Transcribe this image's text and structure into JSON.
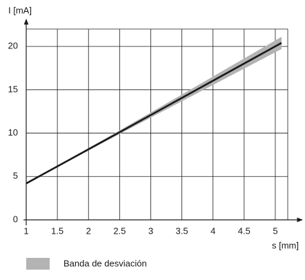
{
  "chart_data": {
    "type": "line",
    "x_label": "s [mm]",
    "y_label": "I [mA]",
    "x": [
      1,
      2.5,
      5.1
    ],
    "line": {
      "color": "#1a1a1a",
      "values": [
        4.2,
        10.1,
        20.4
      ]
    },
    "band": {
      "name": "Banda de desviación",
      "color": "#b3b3b3",
      "lower": [
        4.2,
        9.9,
        19.7
      ],
      "upper": [
        4.2,
        10.3,
        21.1
      ]
    },
    "xlim": [
      1,
      5.2
    ],
    "ylim": [
      0,
      22
    ],
    "xticks": [
      1,
      1.5,
      2,
      2.5,
      3,
      3.5,
      4,
      4.5,
      5
    ],
    "yticks": [
      0,
      5,
      10,
      15,
      20
    ],
    "grid": true
  }
}
